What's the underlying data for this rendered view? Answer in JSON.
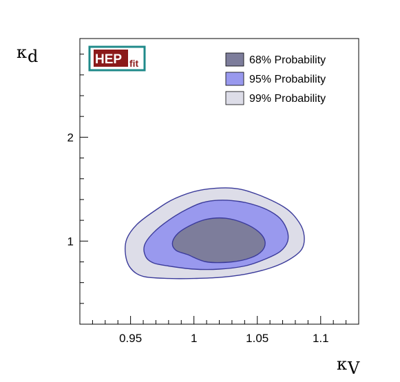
{
  "chart_data": {
    "type": "contour",
    "xlabel": "κ",
    "xlabel_sub": "V",
    "ylabel": "κ",
    "ylabel_sub": "d",
    "xlim": [
      0.91,
      1.13
    ],
    "ylim": [
      0.2,
      2.95
    ],
    "x_ticks": [
      {
        "value": 0.95,
        "label": "0.95"
      },
      {
        "value": 1.0,
        "label": "1"
      },
      {
        "value": 1.05,
        "label": "1.05"
      },
      {
        "value": 1.1,
        "label": "1.1"
      }
    ],
    "y_ticks": [
      {
        "value": 1,
        "label": "1"
      },
      {
        "value": 2,
        "label": "2"
      }
    ],
    "logo": {
      "main": "HEP",
      "sub": "fit"
    },
    "regions": [
      {
        "name": "99% Probability",
        "color": "#dddde8",
        "points": [
          [
            0.96,
            0.66
          ],
          [
            0.98,
            0.64
          ],
          [
            1.0,
            0.64
          ],
          [
            1.02,
            0.65
          ],
          [
            1.04,
            0.68
          ],
          [
            1.06,
            0.74
          ],
          [
            1.075,
            0.82
          ],
          [
            1.085,
            0.92
          ],
          [
            1.087,
            1.05
          ],
          [
            1.083,
            1.18
          ],
          [
            1.072,
            1.32
          ],
          [
            1.05,
            1.45
          ],
          [
            1.03,
            1.51
          ],
          [
            1.005,
            1.49
          ],
          [
            0.985,
            1.41
          ],
          [
            0.97,
            1.3
          ],
          [
            0.955,
            1.16
          ],
          [
            0.947,
            1.02
          ],
          [
            0.946,
            0.87
          ],
          [
            0.95,
            0.74
          ]
        ]
      },
      {
        "name": "95% Probability",
        "color": "#9999ee",
        "points": [
          [
            0.98,
            0.76
          ],
          [
            1.0,
            0.73
          ],
          [
            1.02,
            0.73
          ],
          [
            1.04,
            0.76
          ],
          [
            1.055,
            0.82
          ],
          [
            1.068,
            0.9
          ],
          [
            1.074,
            1.0
          ],
          [
            1.073,
            1.12
          ],
          [
            1.066,
            1.24
          ],
          [
            1.05,
            1.34
          ],
          [
            1.03,
            1.39
          ],
          [
            1.01,
            1.38
          ],
          [
            0.995,
            1.31
          ],
          [
            0.98,
            1.2
          ],
          [
            0.968,
            1.08
          ],
          [
            0.961,
            0.96
          ],
          [
            0.962,
            0.85
          ],
          [
            0.968,
            0.79
          ]
        ]
      },
      {
        "name": "68% Probability",
        "color": "#7d7d9b",
        "points": [
          [
            0.995,
            0.87
          ],
          [
            1.01,
            0.8
          ],
          [
            1.03,
            0.8
          ],
          [
            1.045,
            0.84
          ],
          [
            1.054,
            0.91
          ],
          [
            1.056,
            1.0
          ],
          [
            1.051,
            1.09
          ],
          [
            1.04,
            1.17
          ],
          [
            1.025,
            1.22
          ],
          [
            1.01,
            1.21
          ],
          [
            0.997,
            1.15
          ],
          [
            0.987,
            1.07
          ],
          [
            0.983,
            0.98
          ],
          [
            0.986,
            0.91
          ]
        ]
      }
    ],
    "legend": [
      {
        "label": "68% Probability",
        "color": "#7d7d9b"
      },
      {
        "label": "95% Probability",
        "color": "#9999ee"
      },
      {
        "label": "99% Probability",
        "color": "#dddde8"
      }
    ],
    "legend_position": "top-right",
    "grid": false
  }
}
